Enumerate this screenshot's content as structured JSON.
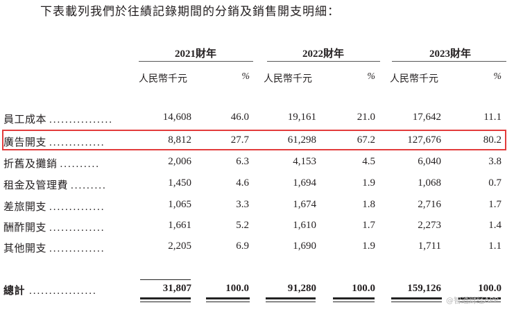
{
  "intro": "下表載列我們於往績記錄期間的分銷及銷售開支明細：",
  "years": [
    "2021財年",
    "2022財年",
    "2023財年"
  ],
  "unit_label": "人民幣千元",
  "pct_label": "%",
  "rows": [
    {
      "label": "員工成本",
      "dots": "................",
      "v": [
        "14,608",
        "46.0",
        "19,161",
        "21.0",
        "17,642",
        "11.1"
      ]
    },
    {
      "label": "廣告開支",
      "dots": "..............",
      "v": [
        "8,812",
        "27.7",
        "61,298",
        "67.2",
        "127,676",
        "80.2"
      ]
    },
    {
      "label": "折舊及攤銷",
      "dots": "..........",
      "v": [
        "2,006",
        "6.3",
        "4,153",
        "4.5",
        "6,040",
        "3.8"
      ]
    },
    {
      "label": "租金及管理費",
      "dots": ".........",
      "v": [
        "1,450",
        "4.6",
        "1,694",
        "1.9",
        "1,068",
        "0.7"
      ]
    },
    {
      "label": "差旅開支",
      "dots": "..............",
      "v": [
        "1,065",
        "3.3",
        "1,674",
        "1.8",
        "2,716",
        "1.7"
      ]
    },
    {
      "label": "酬酢開支",
      "dots": "..............",
      "v": [
        "1,661",
        "5.2",
        "1,610",
        "1.7",
        "2,273",
        "1.4"
      ]
    },
    {
      "label": "其他開支",
      "dots": "..............",
      "v": [
        "2,205",
        "6.9",
        "1,690",
        "1.9",
        "1,711",
        "1.1"
      ]
    }
  ],
  "total": {
    "label": "總計",
    "dots": ".................",
    "v": [
      "31,807",
      "100.0",
      "91,280",
      "100.0",
      "159,126",
      "100.0"
    ]
  },
  "highlight_color": "#e23b3b",
  "watermark": "@智通财经APP"
}
